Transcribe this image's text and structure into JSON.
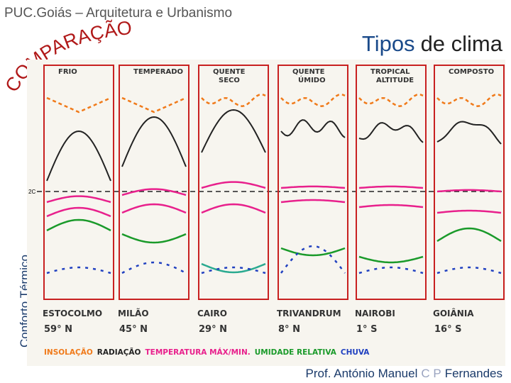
{
  "header": {
    "text": "PUC.Goiás – Arquitetura e Urbanismo",
    "arc_title": "COMPARAÇÃO"
  },
  "title": {
    "highlight": "Tipos",
    "rest": "de clima"
  },
  "side_label": "Conforto Térmico",
  "figure": {
    "reference_label": "2C",
    "panels": [
      {
        "climate": [
          "FRIO"
        ],
        "city": "ESTOCOLMO",
        "latitude": "59° N"
      },
      {
        "climate": [
          "TEMPERADO"
        ],
        "city": "MILÃO",
        "latitude": "45° N"
      },
      {
        "climate": [
          "QUENTE",
          "SECO"
        ],
        "city": "CAIRO",
        "latitude": "29° N"
      },
      {
        "climate": [
          "QUENTE",
          "ÚMIDO"
        ],
        "city": "TRIVANDRUM",
        "latitude": "8° N"
      },
      {
        "climate": [
          "TROPICAL",
          "ALTITUDE"
        ],
        "city": "NAIROBI",
        "latitude": "1° S"
      },
      {
        "climate": [
          "COMPOSTO"
        ],
        "city": "GOIÂNIA",
        "latitude": "16° S"
      }
    ],
    "legend": [
      {
        "label": "INSOLAÇÃO",
        "color": "#f07a1a"
      },
      {
        "label": "RADIAÇÃO",
        "color": "#222222"
      },
      {
        "label": "TEMPERATURA MÁX/MIN.",
        "color": "#e8208c"
      },
      {
        "label": "UMIDADE RELATIVA",
        "color": "#1a9a2a"
      },
      {
        "label": "CHUVA",
        "color": "#2040c0"
      }
    ]
  },
  "footer": {
    "prefix": "Prof. António Manuel",
    "initials": "C P",
    "surname": "Fernandes"
  }
}
